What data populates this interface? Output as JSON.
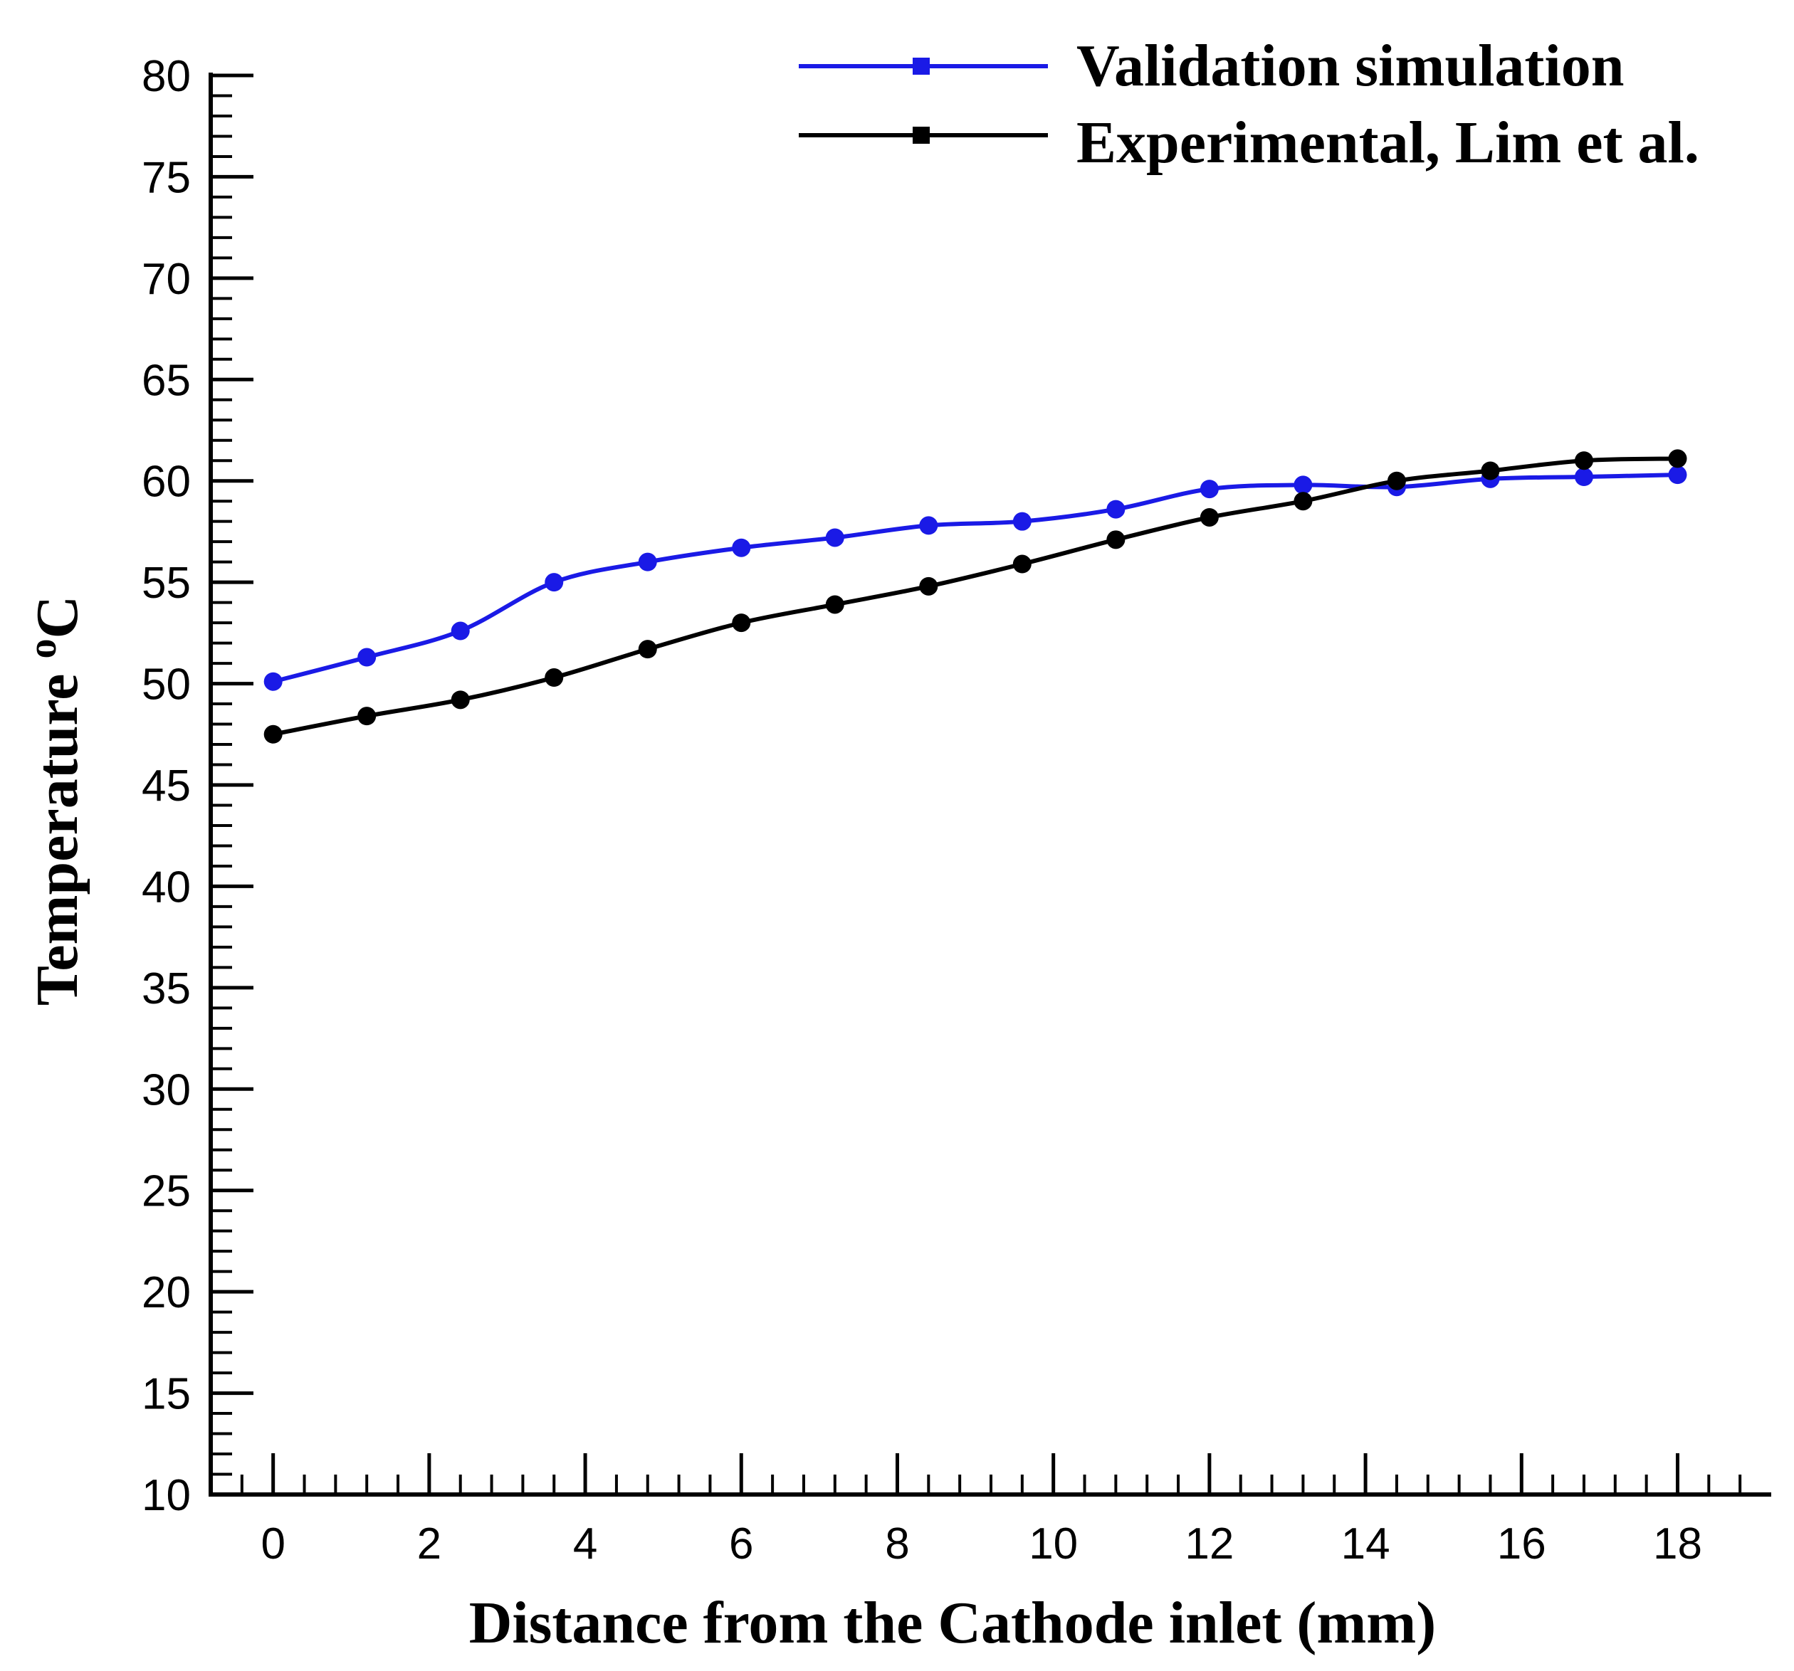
{
  "chart_data": {
    "type": "line",
    "title": "",
    "xlabel": "Distance from the Cathode inlet (mm)",
    "ylabel_main": "Temperature ",
    "ylabel_sup": "o",
    "ylabel_unit": "C",
    "xlim": [
      -0.8,
      19.2
    ],
    "ylim": [
      10,
      80
    ],
    "xticks": [
      "0",
      "2",
      "4",
      "6",
      "8",
      "10",
      "12",
      "14",
      "16",
      "18"
    ],
    "xtick_values": [
      0,
      2,
      4,
      6,
      8,
      10,
      12,
      14,
      16,
      18
    ],
    "yticks": [
      "10",
      "15",
      "20",
      "25",
      "30",
      "35",
      "40",
      "45",
      "50",
      "55",
      "60",
      "65",
      "70",
      "75",
      "80"
    ],
    "ytick_values": [
      10,
      15,
      20,
      25,
      30,
      35,
      40,
      45,
      50,
      55,
      60,
      65,
      70,
      75,
      80
    ],
    "x_minor_step": 0.4,
    "y_minor_step": 1,
    "legend_position": "top-right",
    "series": [
      {
        "name": "Validation simulation",
        "color": "#1a1ae6",
        "x": [
          0,
          1.2,
          2.4,
          3.6,
          4.8,
          6.0,
          7.2,
          8.4,
          9.6,
          10.8,
          12.0,
          13.2,
          14.4,
          15.6,
          16.8,
          18.0
        ],
        "y": [
          50.1,
          51.3,
          52.6,
          55.0,
          56.0,
          56.7,
          57.2,
          57.8,
          58.0,
          58.6,
          59.6,
          59.8,
          59.7,
          60.1,
          60.2,
          60.3
        ]
      },
      {
        "name": "Experimental, Lim et al.",
        "color": "#000000",
        "x": [
          0,
          1.2,
          2.4,
          3.6,
          4.8,
          6.0,
          7.2,
          8.4,
          9.6,
          10.8,
          12.0,
          13.2,
          14.4,
          15.6,
          16.8,
          18.0
        ],
        "y": [
          47.5,
          48.4,
          49.2,
          50.3,
          51.7,
          53.0,
          53.9,
          54.8,
          55.9,
          57.1,
          58.2,
          59.0,
          60.0,
          60.5,
          61.0,
          61.1
        ]
      }
    ]
  }
}
